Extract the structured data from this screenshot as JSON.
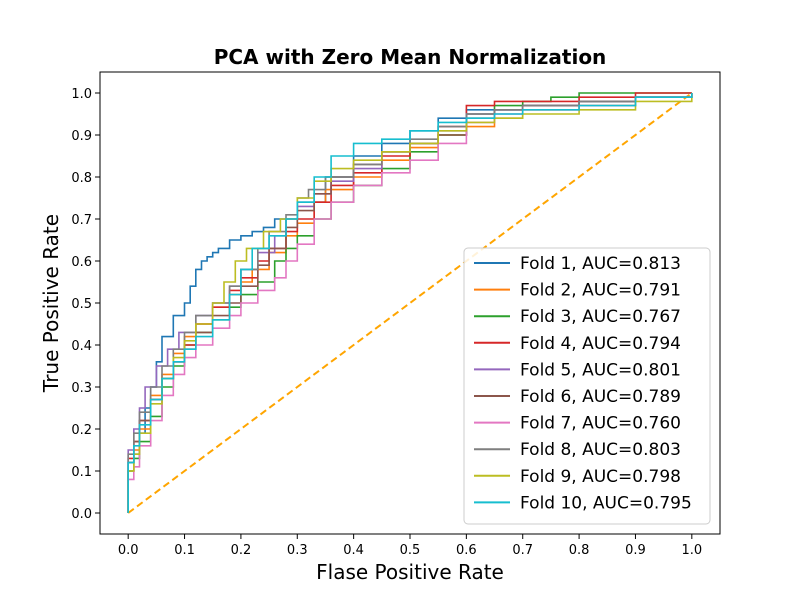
{
  "chart_data": {
    "type": "line",
    "title": "PCA with Zero Mean Normalization",
    "xlabel": "Flase Positive Rate",
    "ylabel": "True Positive Rate",
    "xlim": [
      -0.05,
      1.05
    ],
    "ylim": [
      -0.05,
      1.05
    ],
    "xticks": [
      "0.0",
      "0.1",
      "0.2",
      "0.3",
      "0.4",
      "0.5",
      "0.6",
      "0.7",
      "0.8",
      "0.9",
      "1.0"
    ],
    "yticks": [
      "0.0",
      "0.1",
      "0.2",
      "0.3",
      "0.4",
      "0.5",
      "0.6",
      "0.7",
      "0.8",
      "0.9",
      "1.0"
    ],
    "grid": false,
    "legend_position": "lower right",
    "reference_line": {
      "x": [
        0,
        1
      ],
      "y": [
        0,
        1
      ],
      "color": "#ffa500",
      "style": "dashed"
    },
    "series": [
      {
        "name": "Fold 1, AUC=0.813",
        "color": "#1f77b4",
        "x": [
          0,
          0,
          0.01,
          0.02,
          0.03,
          0.04,
          0.05,
          0.06,
          0.08,
          0.1,
          0.11,
          0.12,
          0.13,
          0.14,
          0.15,
          0.16,
          0.18,
          0.2,
          0.22,
          0.24,
          0.26,
          0.3,
          0.35,
          0.4,
          0.45,
          0.5,
          0.55,
          0.6,
          0.7,
          0.8,
          0.9,
          1.0
        ],
        "y": [
          0,
          0.12,
          0.14,
          0.19,
          0.25,
          0.3,
          0.36,
          0.42,
          0.47,
          0.5,
          0.54,
          0.58,
          0.6,
          0.61,
          0.62,
          0.63,
          0.65,
          0.66,
          0.67,
          0.68,
          0.7,
          0.74,
          0.8,
          0.85,
          0.88,
          0.91,
          0.94,
          0.96,
          0.97,
          0.98,
          0.99,
          1.0
        ]
      },
      {
        "name": "Fold 2, AUC=0.791",
        "color": "#ff7f0e",
        "x": [
          0,
          0,
          0.01,
          0.02,
          0.04,
          0.06,
          0.08,
          0.1,
          0.12,
          0.15,
          0.18,
          0.2,
          0.22,
          0.25,
          0.28,
          0.3,
          0.33,
          0.35,
          0.4,
          0.45,
          0.5,
          0.55,
          0.6,
          0.65,
          0.7,
          0.8,
          0.9,
          1.0
        ],
        "y": [
          0,
          0.1,
          0.15,
          0.2,
          0.28,
          0.33,
          0.38,
          0.42,
          0.45,
          0.49,
          0.52,
          0.55,
          0.58,
          0.62,
          0.66,
          0.69,
          0.74,
          0.77,
          0.8,
          0.84,
          0.87,
          0.9,
          0.92,
          0.94,
          0.96,
          0.97,
          0.99,
          1.0
        ]
      },
      {
        "name": "Fold 3, AUC=0.767",
        "color": "#2ca02c",
        "x": [
          0,
          0,
          0.01,
          0.02,
          0.04,
          0.06,
          0.08,
          0.1,
          0.12,
          0.15,
          0.18,
          0.2,
          0.23,
          0.26,
          0.28,
          0.3,
          0.33,
          0.36,
          0.4,
          0.45,
          0.5,
          0.55,
          0.6,
          0.65,
          0.7,
          0.75,
          0.8,
          0.9,
          1.0
        ],
        "y": [
          0,
          0.1,
          0.13,
          0.17,
          0.23,
          0.3,
          0.35,
          0.4,
          0.43,
          0.46,
          0.49,
          0.52,
          0.55,
          0.6,
          0.63,
          0.66,
          0.7,
          0.74,
          0.78,
          0.82,
          0.86,
          0.9,
          0.95,
          0.97,
          0.98,
          0.99,
          1.0,
          1.0,
          1.0
        ]
      },
      {
        "name": "Fold 4, AUC=0.794",
        "color": "#d62728",
        "x": [
          0,
          0,
          0.01,
          0.02,
          0.04,
          0.06,
          0.08,
          0.1,
          0.12,
          0.15,
          0.18,
          0.2,
          0.23,
          0.25,
          0.28,
          0.3,
          0.33,
          0.36,
          0.4,
          0.45,
          0.5,
          0.55,
          0.6,
          0.65,
          0.7,
          0.8,
          0.9,
          1.0
        ],
        "y": [
          0,
          0.13,
          0.17,
          0.22,
          0.27,
          0.32,
          0.36,
          0.4,
          0.45,
          0.49,
          0.53,
          0.56,
          0.6,
          0.63,
          0.67,
          0.7,
          0.74,
          0.78,
          0.81,
          0.85,
          0.88,
          0.92,
          0.97,
          0.98,
          0.98,
          0.99,
          1.0,
          1.0
        ]
      },
      {
        "name": "Fold 5, AUC=0.801",
        "color": "#9467bd",
        "x": [
          0,
          0,
          0.01,
          0.02,
          0.03,
          0.05,
          0.07,
          0.09,
          0.12,
          0.15,
          0.18,
          0.2,
          0.23,
          0.26,
          0.28,
          0.3,
          0.33,
          0.36,
          0.4,
          0.45,
          0.5,
          0.55,
          0.6,
          0.65,
          0.7,
          0.8,
          0.9,
          1.0
        ],
        "y": [
          0,
          0.15,
          0.2,
          0.25,
          0.3,
          0.35,
          0.39,
          0.43,
          0.47,
          0.5,
          0.54,
          0.58,
          0.62,
          0.66,
          0.7,
          0.73,
          0.76,
          0.79,
          0.82,
          0.86,
          0.88,
          0.91,
          0.95,
          0.96,
          0.97,
          0.98,
          0.99,
          1.0
        ]
      },
      {
        "name": "Fold 6, AUC=0.789",
        "color": "#8c564b",
        "x": [
          0,
          0,
          0.01,
          0.02,
          0.04,
          0.06,
          0.08,
          0.1,
          0.12,
          0.15,
          0.18,
          0.2,
          0.23,
          0.25,
          0.28,
          0.3,
          0.33,
          0.36,
          0.4,
          0.45,
          0.5,
          0.55,
          0.6,
          0.65,
          0.7,
          0.8,
          0.9,
          1.0
        ],
        "y": [
          0,
          0.12,
          0.17,
          0.22,
          0.27,
          0.32,
          0.36,
          0.39,
          0.43,
          0.47,
          0.5,
          0.54,
          0.59,
          0.63,
          0.68,
          0.72,
          0.76,
          0.8,
          0.83,
          0.86,
          0.88,
          0.9,
          0.94,
          0.96,
          0.97,
          0.98,
          0.99,
          1.0
        ]
      },
      {
        "name": "Fold 7, AUC=0.760",
        "color": "#e377c2",
        "x": [
          0,
          0,
          0.01,
          0.02,
          0.04,
          0.06,
          0.08,
          0.1,
          0.12,
          0.15,
          0.18,
          0.2,
          0.23,
          0.26,
          0.28,
          0.3,
          0.33,
          0.36,
          0.4,
          0.45,
          0.5,
          0.55,
          0.6,
          0.65,
          0.7,
          0.8,
          0.9,
          1.0
        ],
        "y": [
          0,
          0.08,
          0.11,
          0.16,
          0.22,
          0.28,
          0.33,
          0.37,
          0.4,
          0.44,
          0.47,
          0.5,
          0.53,
          0.56,
          0.6,
          0.64,
          0.7,
          0.74,
          0.78,
          0.81,
          0.84,
          0.88,
          0.93,
          0.95,
          0.96,
          0.97,
          0.99,
          1.0
        ]
      },
      {
        "name": "Fold 8, AUC=0.803",
        "color": "#7f7f7f",
        "x": [
          0,
          0,
          0.01,
          0.02,
          0.04,
          0.06,
          0.08,
          0.1,
          0.12,
          0.15,
          0.18,
          0.2,
          0.23,
          0.25,
          0.28,
          0.3,
          0.32,
          0.35,
          0.4,
          0.45,
          0.5,
          0.55,
          0.6,
          0.65,
          0.7,
          0.8,
          0.9,
          1.0
        ],
        "y": [
          0,
          0.14,
          0.19,
          0.24,
          0.3,
          0.35,
          0.39,
          0.43,
          0.47,
          0.5,
          0.54,
          0.58,
          0.63,
          0.67,
          0.71,
          0.75,
          0.77,
          0.8,
          0.83,
          0.86,
          0.89,
          0.92,
          0.95,
          0.96,
          0.97,
          0.98,
          0.99,
          1.0
        ]
      },
      {
        "name": "Fold 9, AUC=0.798",
        "color": "#bcbd22",
        "x": [
          0,
          0,
          0.01,
          0.02,
          0.04,
          0.06,
          0.08,
          0.1,
          0.12,
          0.15,
          0.17,
          0.19,
          0.21,
          0.24,
          0.27,
          0.3,
          0.33,
          0.36,
          0.4,
          0.45,
          0.5,
          0.55,
          0.6,
          0.65,
          0.7,
          0.8,
          0.9,
          1.0
        ],
        "y": [
          0,
          0.1,
          0.14,
          0.19,
          0.26,
          0.32,
          0.37,
          0.41,
          0.45,
          0.5,
          0.55,
          0.6,
          0.63,
          0.67,
          0.7,
          0.75,
          0.79,
          0.82,
          0.84,
          0.86,
          0.88,
          0.91,
          0.93,
          0.94,
          0.95,
          0.96,
          0.98,
          1.0
        ]
      },
      {
        "name": "Fold 10, AUC=0.795",
        "color": "#17becf",
        "x": [
          0,
          0,
          0.01,
          0.02,
          0.04,
          0.06,
          0.08,
          0.1,
          0.12,
          0.15,
          0.18,
          0.2,
          0.22,
          0.25,
          0.28,
          0.3,
          0.33,
          0.36,
          0.4,
          0.45,
          0.5,
          0.55,
          0.6,
          0.65,
          0.7,
          0.8,
          0.9,
          1.0
        ],
        "y": [
          0,
          0.12,
          0.16,
          0.21,
          0.27,
          0.32,
          0.36,
          0.39,
          0.42,
          0.46,
          0.52,
          0.58,
          0.63,
          0.66,
          0.7,
          0.74,
          0.8,
          0.85,
          0.88,
          0.89,
          0.91,
          0.93,
          0.94,
          0.95,
          0.96,
          0.97,
          0.99,
          1.0
        ]
      }
    ]
  }
}
